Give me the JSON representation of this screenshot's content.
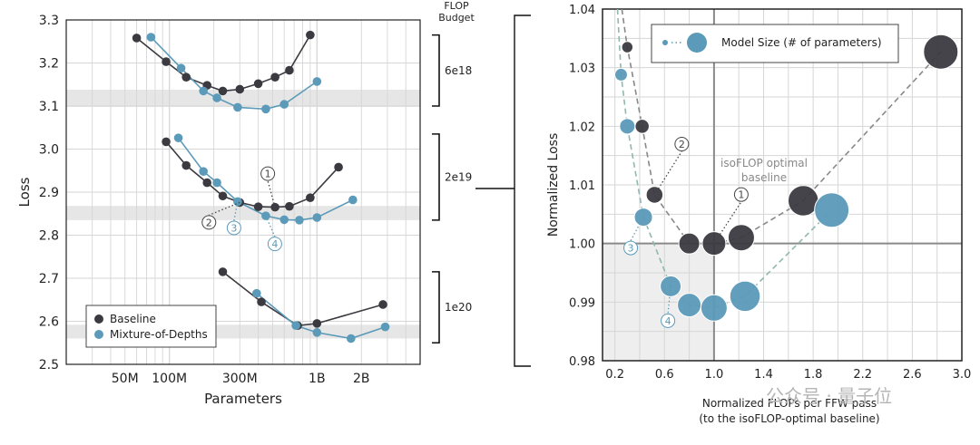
{
  "colors": {
    "baseline": "#3b3a40",
    "mod": "#5b9ab8",
    "grid_light": "#d6d6d6",
    "grid_dark": "#8a8a8a",
    "band": "#e6e6e6",
    "shade": "#eeeeee",
    "watermark": "#b5b5b5"
  },
  "watermark": {
    "text": "公众号 · 量子位"
  },
  "chart_data": [
    {
      "type": "line",
      "xlabel": "Parameters",
      "ylabel": "Loss",
      "xscale": "log",
      "xlim": [
        20000000,
        5000000000
      ],
      "ylim": [
        2.5,
        3.3
      ],
      "x_tick_labels": [
        "50M",
        "100M",
        "300M",
        "1B",
        "2B"
      ],
      "x_ticks": [
        50000000,
        100000000,
        300000000,
        1000000000,
        2000000000
      ],
      "y_ticks": [
        2.5,
        2.6,
        2.7,
        2.8,
        2.9,
        3.0,
        3.1,
        3.2,
        3.3
      ],
      "y_tick_labels": [
        "2.5",
        "2.6",
        "2.7",
        "2.8",
        "2.9",
        "3.0",
        "3.1",
        "3.2",
        "3.3"
      ],
      "legend": {
        "position": "bottom-left",
        "entries": [
          "Baseline",
          "Mixture-of-Depths"
        ]
      },
      "budget_title": "FLOP\nBudget",
      "budgets": [
        {
          "label": "6e18",
          "range": [
            3.1,
            3.265
          ],
          "band": [
            3.098,
            3.138
          ]
        },
        {
          "label": "2e19",
          "range": [
            2.835,
            3.035
          ],
          "band": [
            2.835,
            2.868
          ]
        },
        {
          "label": "1e20",
          "range": [
            2.55,
            2.715
          ],
          "band": [
            2.56,
            2.592
          ]
        }
      ],
      "series": [
        {
          "name": "Baseline",
          "groups": [
            {
              "x": [
                60000000,
                95000000,
                130000000,
                180000000,
                230000000,
                300000000,
                400000000,
                520000000,
                650000000,
                900000000
              ],
              "y": [
                3.258,
                3.203,
                3.167,
                3.148,
                3.135,
                3.139,
                3.152,
                3.167,
                3.183,
                3.265
              ]
            },
            {
              "x": [
                95000000,
                130000000,
                180000000,
                230000000,
                300000000,
                400000000,
                520000000,
                650000000,
                900000000,
                1400000000
              ],
              "y": [
                3.017,
                2.962,
                2.922,
                2.891,
                2.876,
                2.866,
                2.865,
                2.867,
                2.887,
                2.958
              ]
            },
            {
              "x": [
                230000000,
                420000000,
                740000000,
                1000000000,
                2800000000
              ],
              "y": [
                2.715,
                2.645,
                2.59,
                2.595,
                2.639
              ]
            }
          ]
        },
        {
          "name": "Mixture-of-Depths",
          "groups": [
            {
              "x": [
                75000000,
                120000000,
                170000000,
                210000000,
                290000000,
                450000000,
                600000000,
                1000000000
              ],
              "y": [
                3.26,
                3.188,
                3.135,
                3.119,
                3.097,
                3.093,
                3.104,
                3.157
              ]
            },
            {
              "x": [
                115000000,
                170000000,
                210000000,
                290000000,
                450000000,
                600000000,
                760000000,
                1000000000,
                1750000000
              ],
              "y": [
                3.026,
                2.948,
                2.922,
                2.878,
                2.845,
                2.836,
                2.835,
                2.841,
                2.882
              ]
            },
            {
              "x": [
                390000000,
                720000000,
                1000000000,
                1700000000,
                2900000000
              ],
              "y": [
                2.665,
                2.59,
                2.574,
                2.56,
                2.587
              ]
            }
          ]
        }
      ],
      "annotations": [
        {
          "label": "1",
          "series": "Baseline",
          "group": 1,
          "index": 6
        },
        {
          "label": "2",
          "series": "Baseline",
          "group": 1,
          "index": 4
        },
        {
          "label": "3",
          "series": "Mixture-of-Depths",
          "group": 1,
          "index": 3
        },
        {
          "label": "4",
          "series": "Mixture-of-Depths",
          "group": 1,
          "index": 4
        }
      ]
    },
    {
      "type": "scatter",
      "xlabel": "Normalized FLOPs per FFW pass\n(to the isoFLOP-optimal baseline)",
      "ylabel": "Normalized Loss",
      "xlim": [
        0.1,
        3.0
      ],
      "ylim": [
        0.98,
        1.04
      ],
      "x_ticks": [
        0.2,
        0.6,
        1.0,
        1.4,
        1.8,
        2.2,
        2.6,
        3.0
      ],
      "x_tick_labels": [
        "0.2",
        "0.6",
        "1.0",
        "1.4",
        "1.8",
        "2.2",
        "2.6",
        "3.0"
      ],
      "y_ticks": [
        0.98,
        0.99,
        1.0,
        1.01,
        1.02,
        1.03,
        1.04
      ],
      "y_tick_labels": [
        "0.98",
        "0.99",
        "1.00",
        "1.01",
        "1.02",
        "1.03",
        "1.04"
      ],
      "legend": {
        "position": "top",
        "entries": [
          "Model Size (# of parameters)"
        ]
      },
      "annotation_text": "isoFLOP optimal\nbaseline",
      "series": [
        {
          "name": "Baseline",
          "points": [
            {
              "x": 0.3,
              "y": 1.0335,
              "size": 0.15
            },
            {
              "x": 0.42,
              "y": 1.02,
              "size": 0.25
            },
            {
              "x": 0.52,
              "y": 1.0083,
              "size": 0.35
            },
            {
              "x": 0.8,
              "y": 1.0,
              "size": 0.5
            },
            {
              "x": 1.0,
              "y": 1.0,
              "size": 0.6
            },
            {
              "x": 1.22,
              "y": 1.001,
              "size": 0.7
            },
            {
              "x": 1.72,
              "y": 1.0073,
              "size": 0.85
            },
            {
              "x": 2.83,
              "y": 1.0327,
              "size": 1.0
            }
          ]
        },
        {
          "name": "Mixture-of-Depths",
          "points": [
            {
              "x": 0.25,
              "y": 1.0288,
              "size": 0.2
            },
            {
              "x": 0.3,
              "y": 1.02,
              "size": 0.3
            },
            {
              "x": 0.43,
              "y": 1.0045,
              "size": 0.4
            },
            {
              "x": 0.65,
              "y": 0.9927,
              "size": 0.5
            },
            {
              "x": 0.8,
              "y": 0.9895,
              "size": 0.6
            },
            {
              "x": 1.0,
              "y": 0.989,
              "size": 0.7
            },
            {
              "x": 1.25,
              "y": 0.991,
              "size": 0.85
            },
            {
              "x": 1.95,
              "y": 1.0057,
              "size": 1.0
            }
          ]
        }
      ],
      "annotations": [
        {
          "label": "1",
          "series": "Baseline",
          "index": 4
        },
        {
          "label": "2",
          "series": "Baseline",
          "index": 2
        },
        {
          "label": "3",
          "series": "Mixture-of-Depths",
          "index": 2
        },
        {
          "label": "4",
          "series": "Mixture-of-Depths",
          "index": 3
        }
      ]
    }
  ]
}
